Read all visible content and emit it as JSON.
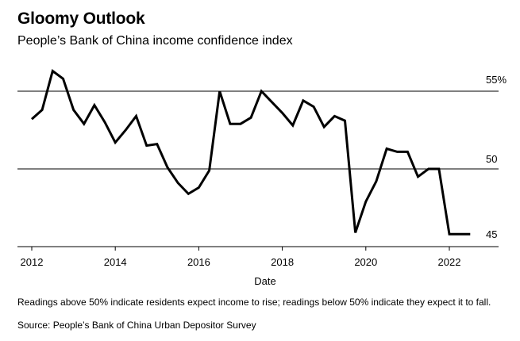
{
  "header": {
    "title": "Gloomy Outlook",
    "subtitle": "People’s Bank of China income confidence index"
  },
  "footer": {
    "note": "Readings above 50% indicate residents expect income to rise; readings below 50% indicate they expect it to fall.",
    "source": "Source: People’s Bank of China Urban Depositor Survey"
  },
  "chart_data": {
    "type": "line",
    "title": "Gloomy Outlook",
    "subtitle": "People’s Bank of China income confidence index",
    "xlabel": "Date",
    "ylabel": "",
    "xlim": [
      2011.75,
      2022.95
    ],
    "ylim": [
      45,
      55
    ],
    "x_ticks": [
      2012,
      2014,
      2016,
      2018,
      2020,
      2022
    ],
    "y_ticks": [
      {
        "value": 55,
        "label": "55%"
      },
      {
        "value": 50,
        "label": "50"
      },
      {
        "value": 45,
        "label": "45"
      }
    ],
    "grid": "horizontal reference lines at 50 and 55",
    "series": [
      {
        "name": "Income confidence index",
        "color": "#000000",
        "x": [
          2012.0,
          2012.25,
          2012.5,
          2012.75,
          2013.0,
          2013.25,
          2013.5,
          2013.75,
          2014.0,
          2014.25,
          2014.5,
          2014.75,
          2015.0,
          2015.25,
          2015.5,
          2015.75,
          2016.0,
          2016.25,
          2016.5,
          2016.75,
          2017.0,
          2017.25,
          2017.5,
          2017.75,
          2018.0,
          2018.25,
          2018.5,
          2018.75,
          2019.0,
          2019.25,
          2019.5,
          2019.75,
          2020.0,
          2020.25,
          2020.5,
          2020.75,
          2021.0,
          2021.25,
          2021.5,
          2021.75,
          2022.0,
          2022.25,
          2022.5
        ],
        "values": [
          53.2,
          53.8,
          56.3,
          55.8,
          53.8,
          52.9,
          54.1,
          53.0,
          51.7,
          52.5,
          53.4,
          51.5,
          51.6,
          50.1,
          49.1,
          48.4,
          48.8,
          49.9,
          55.0,
          52.9,
          52.9,
          53.3,
          55.0,
          54.3,
          53.6,
          52.8,
          54.4,
          54.0,
          52.7,
          53.4,
          53.1,
          45.9,
          47.9,
          49.2,
          51.3,
          51.1,
          51.1,
          49.5,
          50.0,
          50.0,
          45.8,
          45.8,
          45.8
        ]
      }
    ]
  }
}
